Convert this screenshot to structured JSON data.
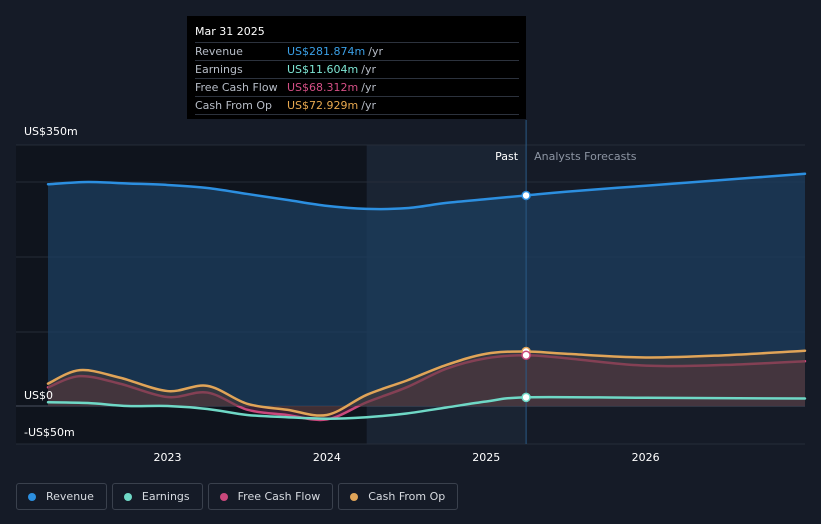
{
  "tooltip": {
    "date": "Mar 31 2025",
    "rows": [
      {
        "label": "Revenue",
        "value": "US$281.874m",
        "unit": "/yr",
        "color": "#3a9fe5"
      },
      {
        "label": "Earnings",
        "value": "US$11.604m",
        "unit": "/yr",
        "color": "#7ee6d4"
      },
      {
        "label": "Free Cash Flow",
        "value": "US$68.312m",
        "unit": "/yr",
        "color": "#d44f85"
      },
      {
        "label": "Cash From Op",
        "value": "US$72.929m",
        "unit": "/yr",
        "color": "#e8a84f"
      }
    ]
  },
  "legend": [
    {
      "label": "Revenue",
      "color": "#2c8fe0"
    },
    {
      "label": "Earnings",
      "color": "#6fd8c6"
    },
    {
      "label": "Free Cash Flow",
      "color": "#c9487c"
    },
    {
      "label": "Cash From Op",
      "color": "#e0a458"
    }
  ],
  "chart_data": {
    "type": "area",
    "y_tick_labels": [
      "US$350m",
      "US$0",
      "-US$50m"
    ],
    "ylim": [
      -50,
      350
    ],
    "xlim": [
      2022.2,
      2027.0
    ],
    "x_tick_labels": [
      "2023",
      "2024",
      "2025",
      "2026"
    ],
    "x_ticks": [
      2023,
      2024,
      2025,
      2026
    ],
    "past_label": "Past",
    "forecast_label": "Analysts Forecasts",
    "divider_x": 2025.25,
    "highlight_range": [
      2024.25,
      2025.25
    ],
    "series": [
      {
        "name": "Revenue",
        "color": "#2c8fe0",
        "fill": "#1c3e5f",
        "points": [
          [
            2022.25,
            297
          ],
          [
            2022.5,
            300
          ],
          [
            2022.75,
            298
          ],
          [
            2023.0,
            296
          ],
          [
            2023.25,
            292
          ],
          [
            2023.5,
            284
          ],
          [
            2023.75,
            276
          ],
          [
            2024.0,
            268
          ],
          [
            2024.25,
            264
          ],
          [
            2024.5,
            265
          ],
          [
            2024.75,
            272
          ],
          [
            2025.0,
            277
          ],
          [
            2025.25,
            282
          ],
          [
            2025.5,
            287
          ],
          [
            2026.0,
            295
          ],
          [
            2026.5,
            303
          ],
          [
            2027.0,
            311
          ]
        ]
      },
      {
        "name": "Free Cash Flow",
        "color": "#c9487c",
        "fill": "#5a2d48",
        "points": [
          [
            2022.25,
            25
          ],
          [
            2022.45,
            40
          ],
          [
            2022.7,
            30
          ],
          [
            2023.0,
            12
          ],
          [
            2023.25,
            18
          ],
          [
            2023.5,
            -5
          ],
          [
            2023.75,
            -12
          ],
          [
            2024.0,
            -18
          ],
          [
            2024.25,
            5
          ],
          [
            2024.5,
            25
          ],
          [
            2024.75,
            50
          ],
          [
            2025.0,
            64
          ],
          [
            2025.25,
            68
          ],
          [
            2025.5,
            64
          ],
          [
            2026.0,
            54
          ],
          [
            2026.5,
            55
          ],
          [
            2027.0,
            60
          ]
        ]
      },
      {
        "name": "Cash From Op",
        "color": "#e0a458",
        "fill": "#4a3a33",
        "points": [
          [
            2022.25,
            30
          ],
          [
            2022.45,
            48
          ],
          [
            2022.7,
            38
          ],
          [
            2023.0,
            20
          ],
          [
            2023.25,
            27
          ],
          [
            2023.5,
            3
          ],
          [
            2023.75,
            -5
          ],
          [
            2024.0,
            -12
          ],
          [
            2024.25,
            15
          ],
          [
            2024.5,
            34
          ],
          [
            2024.75,
            55
          ],
          [
            2025.0,
            70
          ],
          [
            2025.25,
            73
          ],
          [
            2025.5,
            70
          ],
          [
            2026.0,
            65
          ],
          [
            2026.5,
            68
          ],
          [
            2027.0,
            74
          ]
        ]
      },
      {
        "name": "Earnings",
        "color": "#6fd8c6",
        "fill": "none",
        "points": [
          [
            2022.25,
            5
          ],
          [
            2022.5,
            4
          ],
          [
            2022.75,
            0
          ],
          [
            2023.0,
            0
          ],
          [
            2023.25,
            -4
          ],
          [
            2023.5,
            -12
          ],
          [
            2023.75,
            -15
          ],
          [
            2024.0,
            -17
          ],
          [
            2024.25,
            -15
          ],
          [
            2024.5,
            -10
          ],
          [
            2024.75,
            -2
          ],
          [
            2025.0,
            6
          ],
          [
            2025.25,
            11.6
          ],
          [
            2026.0,
            11
          ],
          [
            2027.0,
            10
          ]
        ]
      }
    ],
    "markers": [
      {
        "series": "Revenue",
        "x": 2025.25,
        "y": 282
      },
      {
        "series": "Cash From Op",
        "x": 2025.25,
        "y": 73
      },
      {
        "series": "Free Cash Flow",
        "x": 2025.25,
        "y": 68
      },
      {
        "series": "Earnings",
        "x": 2025.25,
        "y": 11.6
      }
    ]
  }
}
